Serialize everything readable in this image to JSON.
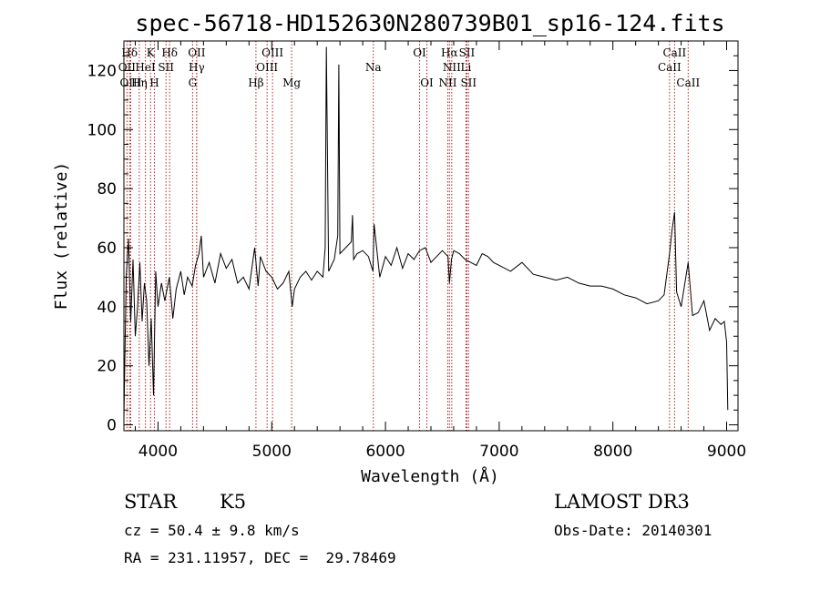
{
  "chart_data": {
    "type": "line",
    "title": "spec-56718-HD152630N280739B01_sp16-124.fits",
    "xlabel": "Wavelength (Å)",
    "ylabel": "Flux (relative)",
    "xlim": [
      3700,
      9100
    ],
    "ylim": [
      -2,
      130
    ],
    "xticks": [
      4000,
      5000,
      6000,
      7000,
      8000,
      9000
    ],
    "yticks": [
      0,
      20,
      40,
      60,
      80,
      100,
      120
    ],
    "series": [
      {
        "name": "flux",
        "x": [
          3700,
          3720,
          3740,
          3760,
          3780,
          3800,
          3820,
          3840,
          3860,
          3880,
          3900,
          3920,
          3940,
          3960,
          3980,
          4000,
          4030,
          4060,
          4100,
          4130,
          4160,
          4200,
          4230,
          4260,
          4300,
          4330,
          4360,
          4380,
          4400,
          4450,
          4500,
          4550,
          4600,
          4650,
          4700,
          4750,
          4800,
          4850,
          4880,
          4900,
          4950,
          5000,
          5050,
          5100,
          5150,
          5180,
          5200,
          5250,
          5300,
          5350,
          5400,
          5450,
          5470,
          5480,
          5500,
          5550,
          5580,
          5590,
          5600,
          5650,
          5700,
          5710,
          5720,
          5750,
          5800,
          5850,
          5890,
          5900,
          5950,
          6000,
          6050,
          6100,
          6150,
          6200,
          6250,
          6300,
          6350,
          6400,
          6450,
          6500,
          6550,
          6563,
          6580,
          6600,
          6650,
          6700,
          6750,
          6800,
          6850,
          6900,
          6950,
          7000,
          7100,
          7200,
          7300,
          7400,
          7500,
          7600,
          7700,
          7800,
          7900,
          8000,
          8100,
          8200,
          8300,
          8400,
          8450,
          8498,
          8520,
          8542,
          8560,
          8600,
          8662,
          8700,
          8750,
          8800,
          8850,
          8900,
          8950,
          8980,
          9000,
          9010
        ],
        "values": [
          2,
          50,
          63,
          35,
          56,
          30,
          40,
          55,
          35,
          48,
          42,
          20,
          36,
          10,
          52,
          40,
          48,
          42,
          50,
          36,
          46,
          52,
          44,
          50,
          47,
          54,
          58,
          64,
          50,
          55,
          48,
          58,
          53,
          56,
          48,
          50,
          46,
          60,
          47,
          57,
          52,
          50,
          46,
          48,
          52,
          40,
          46,
          50,
          52,
          49,
          52,
          50,
          60,
          128,
          52,
          56,
          64,
          122,
          58,
          60,
          62,
          71,
          56,
          58,
          59,
          57,
          52,
          68,
          50,
          57,
          54,
          60,
          53,
          58,
          56,
          59,
          60,
          55,
          57,
          59,
          57,
          48,
          56,
          59,
          58,
          56,
          55,
          54,
          58,
          57,
          55,
          54,
          52,
          55,
          51,
          50,
          49,
          50,
          48,
          47,
          47,
          46,
          44,
          43,
          41,
          42,
          44,
          58,
          66,
          72,
          45,
          40,
          55,
          37,
          38,
          42,
          32,
          36,
          34,
          35,
          28,
          5
        ]
      }
    ],
    "spectral_lines": [
      {
        "label": "Hδ",
        "wavelength": 3750,
        "row": 1
      },
      {
        "label": "K",
        "wavelength": 3934,
        "row": 1
      },
      {
        "label": "Hδ",
        "wavelength": 4102,
        "row": 1
      },
      {
        "label": "OII",
        "wavelength": 4340,
        "row": 1
      },
      {
        "label": "OIII",
        "wavelength": 5007,
        "row": 1
      },
      {
        "label": "OI",
        "wavelength": 6300,
        "row": 1
      },
      {
        "label": "Hα",
        "wavelength": 6563,
        "row": 1
      },
      {
        "label": "SII",
        "wavelength": 6716,
        "row": 1
      },
      {
        "label": "CaII",
        "wavelength": 8542,
        "row": 1
      },
      {
        "label": "OII",
        "wavelength": 3727,
        "row": 2
      },
      {
        "label": "HeI",
        "wavelength": 3889,
        "row": 2
      },
      {
        "label": "SII",
        "wavelength": 4070,
        "row": 2
      },
      {
        "label": "Hγ",
        "wavelength": 4340,
        "row": 2
      },
      {
        "label": "OIII",
        "wavelength": 4959,
        "row": 2
      },
      {
        "label": "Na",
        "wavelength": 5893,
        "row": 2
      },
      {
        "label": "NII",
        "wavelength": 6583,
        "row": 2
      },
      {
        "label": "Li",
        "wavelength": 6708,
        "row": 2
      },
      {
        "label": "CaII",
        "wavelength": 8498,
        "row": 2
      },
      {
        "label": "OIII",
        "wavelength": 3760,
        "row": 3
      },
      {
        "label": "Hη",
        "wavelength": 3835,
        "row": 3
      },
      {
        "label": "H",
        "wavelength": 3968,
        "row": 3
      },
      {
        "label": "G",
        "wavelength": 4304,
        "row": 3
      },
      {
        "label": "Hβ",
        "wavelength": 4861,
        "row": 3
      },
      {
        "label": "Mg",
        "wavelength": 5175,
        "row": 3
      },
      {
        "label": "OI",
        "wavelength": 6364,
        "row": 3
      },
      {
        "label": "NII",
        "wavelength": 6548,
        "row": 3
      },
      {
        "label": "SII",
        "wavelength": 6731,
        "row": 3
      },
      {
        "label": "CaII",
        "wavelength": 8662,
        "row": 3
      }
    ]
  },
  "info": {
    "object_class": "STAR",
    "subclass": "K5",
    "survey": "LAMOST DR3",
    "redshift": "cz = 50.4 ± 9.8 km/s",
    "obs_date": "Obs-Date: 20140301",
    "coords": "RA = 231.11957, DEC =  29.78469"
  },
  "colors": {
    "spectrum": "#000000",
    "line_marker": "#b22222",
    "frame": "#000000"
  }
}
